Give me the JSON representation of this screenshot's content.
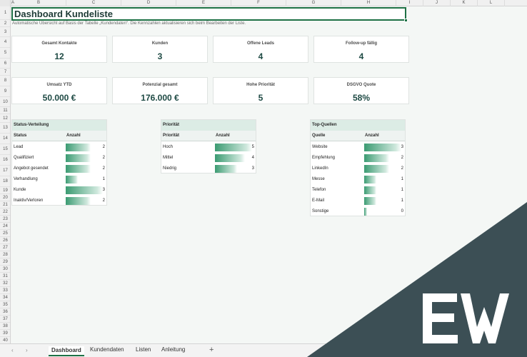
{
  "columns": [
    "A",
    "B",
    "C",
    "D",
    "E",
    "F",
    "G",
    "H",
    "I",
    "J",
    "K",
    "L"
  ],
  "title": "Dashboard Kundeliste",
  "subtitle": "Automatische Übersicht auf Basis der Tabelle „Kundendaten“. Die Kennzahlen aktualisieren sich beim Bearbeiten der Liste.",
  "kpi_row1": [
    {
      "label": "Gesamt Kontakte",
      "value": "12"
    },
    {
      "label": "Kunden",
      "value": "3"
    },
    {
      "label": "Offene Leads",
      "value": "4"
    },
    {
      "label": "Follow-up fällig",
      "value": "4"
    }
  ],
  "kpi_row2": [
    {
      "label": "Umsatz YTD",
      "value": "50.000 €"
    },
    {
      "label": "Potenzial gesamt",
      "value": "176.000 €"
    },
    {
      "label": "Hohe Priorität",
      "value": "5"
    },
    {
      "label": "DSGVO Quote",
      "value": "58%"
    }
  ],
  "status_table": {
    "title": "Status-Verteilung",
    "col1": "Status",
    "col2": "Anzahl",
    "max": 3,
    "rows": [
      {
        "label": "Lead",
        "value": 2
      },
      {
        "label": "Qualifiziert",
        "value": 2
      },
      {
        "label": "Angebot gesendet",
        "value": 2
      },
      {
        "label": "Verhandlung",
        "value": 1
      },
      {
        "label": "Kunde",
        "value": 3
      },
      {
        "label": "Inaktiv/Verloren",
        "value": 2
      }
    ]
  },
  "priority_table": {
    "title": "Priorität",
    "col1": "Priorität",
    "col2": "Anzahl",
    "max": 5,
    "rows": [
      {
        "label": "Hoch",
        "value": 5
      },
      {
        "label": "Mittel",
        "value": 4
      },
      {
        "label": "Niedrig",
        "value": 3
      }
    ]
  },
  "sources_table": {
    "title": "Top-Quellen",
    "col1": "Quelle",
    "col2": "Anzahl",
    "max": 3,
    "rows": [
      {
        "label": "Website",
        "value": 3
      },
      {
        "label": "Empfehlung",
        "value": 2
      },
      {
        "label": "LinkedIn",
        "value": 2
      },
      {
        "label": "Messe",
        "value": 1
      },
      {
        "label": "Telefon",
        "value": 1
      },
      {
        "label": "E-Mail",
        "value": 1
      },
      {
        "label": "Sonstige",
        "value": 0
      }
    ]
  },
  "sheet_tabs": {
    "prev": "‹",
    "next": "›",
    "items": [
      "Dashboard",
      "Kundendaten",
      "Listen",
      "Anleitung"
    ],
    "active": 0,
    "add": "+"
  },
  "colors": {
    "accent": "#1e7145",
    "header_fill": "#dcece5",
    "watermark": "#3c4f55"
  }
}
